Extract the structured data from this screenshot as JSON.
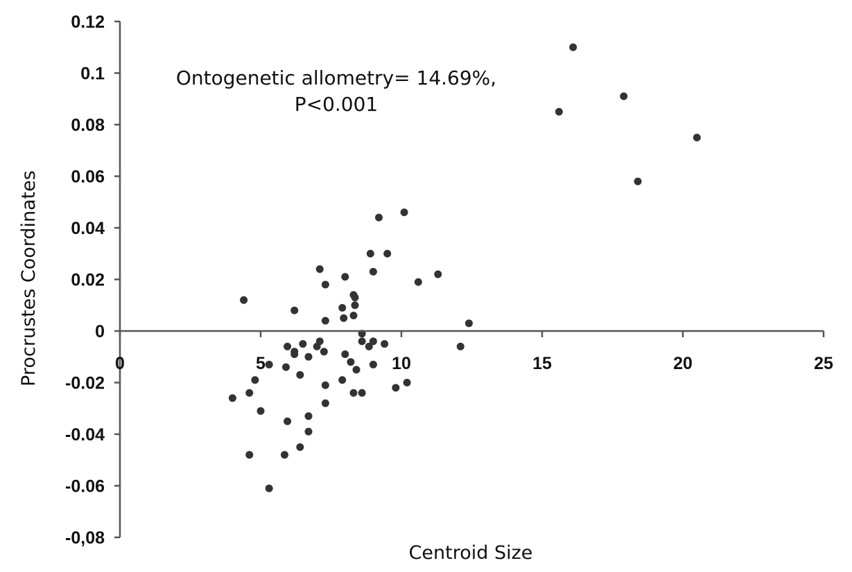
{
  "chart_data": {
    "type": "scatter",
    "title": "",
    "xlabel": "Centroid Size",
    "ylabel": "Procrustes Coordinates",
    "annotation": {
      "line1": "Ontogenetic allometry= 14.69%,",
      "line2": "P<0.001"
    },
    "xlim": [
      0,
      25
    ],
    "ylim": [
      -0.08,
      0.12
    ],
    "x_ticks": [
      0,
      5,
      10,
      15,
      20,
      25
    ],
    "x_tick_labels": [
      "0",
      "5",
      "10",
      "15",
      "20",
      "25"
    ],
    "y_ticks": [
      0.12,
      0.1,
      0.08,
      0.06,
      0.04,
      0.02,
      0,
      -0.02,
      -0.04,
      -0.06,
      -0.08
    ],
    "y_tick_labels": [
      "0.12",
      "0.1",
      "0.08",
      "0.06",
      "0.04",
      "0.02",
      "0",
      "-0.02",
      "-0.04",
      "-0.06",
      "-0,08"
    ],
    "grid": false,
    "legend": "none",
    "marker_color": "#333333",
    "points": [
      {
        "x": 16.1,
        "y": 0.11
      },
      {
        "x": 15.6,
        "y": 0.085
      },
      {
        "x": 17.9,
        "y": 0.091
      },
      {
        "x": 20.5,
        "y": 0.075
      },
      {
        "x": 18.4,
        "y": 0.058
      },
      {
        "x": 10.1,
        "y": 0.046
      },
      {
        "x": 9.2,
        "y": 0.044
      },
      {
        "x": 8.9,
        "y": 0.03
      },
      {
        "x": 9.5,
        "y": 0.03
      },
      {
        "x": 7.1,
        "y": 0.024
      },
      {
        "x": 9.0,
        "y": 0.023
      },
      {
        "x": 11.3,
        "y": 0.022
      },
      {
        "x": 8.0,
        "y": 0.021
      },
      {
        "x": 10.6,
        "y": 0.019
      },
      {
        "x": 7.3,
        "y": 0.018
      },
      {
        "x": 8.3,
        "y": 0.014
      },
      {
        "x": 8.35,
        "y": 0.013
      },
      {
        "x": 4.4,
        "y": 0.012
      },
      {
        "x": 8.35,
        "y": 0.01
      },
      {
        "x": 7.9,
        "y": 0.009
      },
      {
        "x": 6.2,
        "y": 0.008
      },
      {
        "x": 8.3,
        "y": 0.006
      },
      {
        "x": 7.95,
        "y": 0.005
      },
      {
        "x": 7.3,
        "y": 0.004
      },
      {
        "x": 12.4,
        "y": 0.003
      },
      {
        "x": 8.6,
        "y": -0.001
      },
      {
        "x": 7.1,
        "y": -0.004
      },
      {
        "x": 8.6,
        "y": -0.004
      },
      {
        "x": 9.0,
        "y": -0.004
      },
      {
        "x": 9.4,
        "y": -0.005
      },
      {
        "x": 6.5,
        "y": -0.005
      },
      {
        "x": 7.0,
        "y": -0.006
      },
      {
        "x": 5.95,
        "y": -0.006
      },
      {
        "x": 8.85,
        "y": -0.006
      },
      {
        "x": 12.1,
        "y": -0.006
      },
      {
        "x": 6.2,
        "y": -0.008
      },
      {
        "x": 7.25,
        "y": -0.008
      },
      {
        "x": 6.2,
        "y": -0.009
      },
      {
        "x": 8.0,
        "y": -0.009
      },
      {
        "x": 6.7,
        "y": -0.01
      },
      {
        "x": 8.2,
        "y": -0.012
      },
      {
        "x": 5.3,
        "y": -0.013
      },
      {
        "x": 5.9,
        "y": -0.014
      },
      {
        "x": 9.0,
        "y": -0.013
      },
      {
        "x": 8.4,
        "y": -0.015
      },
      {
        "x": 6.4,
        "y": -0.017
      },
      {
        "x": 4.8,
        "y": -0.019
      },
      {
        "x": 7.9,
        "y": -0.019
      },
      {
        "x": 10.2,
        "y": -0.02
      },
      {
        "x": 7.3,
        "y": -0.021
      },
      {
        "x": 9.8,
        "y": -0.022
      },
      {
        "x": 4.6,
        "y": -0.024
      },
      {
        "x": 8.3,
        "y": -0.024
      },
      {
        "x": 8.6,
        "y": -0.024
      },
      {
        "x": 4.0,
        "y": -0.026
      },
      {
        "x": 7.3,
        "y": -0.028
      },
      {
        "x": 5.0,
        "y": -0.031
      },
      {
        "x": 6.7,
        "y": -0.033
      },
      {
        "x": 5.95,
        "y": -0.035
      },
      {
        "x": 6.7,
        "y": -0.039
      },
      {
        "x": 6.4,
        "y": -0.045
      },
      {
        "x": 4.6,
        "y": -0.048
      },
      {
        "x": 5.85,
        "y": -0.048
      },
      {
        "x": 5.3,
        "y": -0.061
      }
    ]
  }
}
